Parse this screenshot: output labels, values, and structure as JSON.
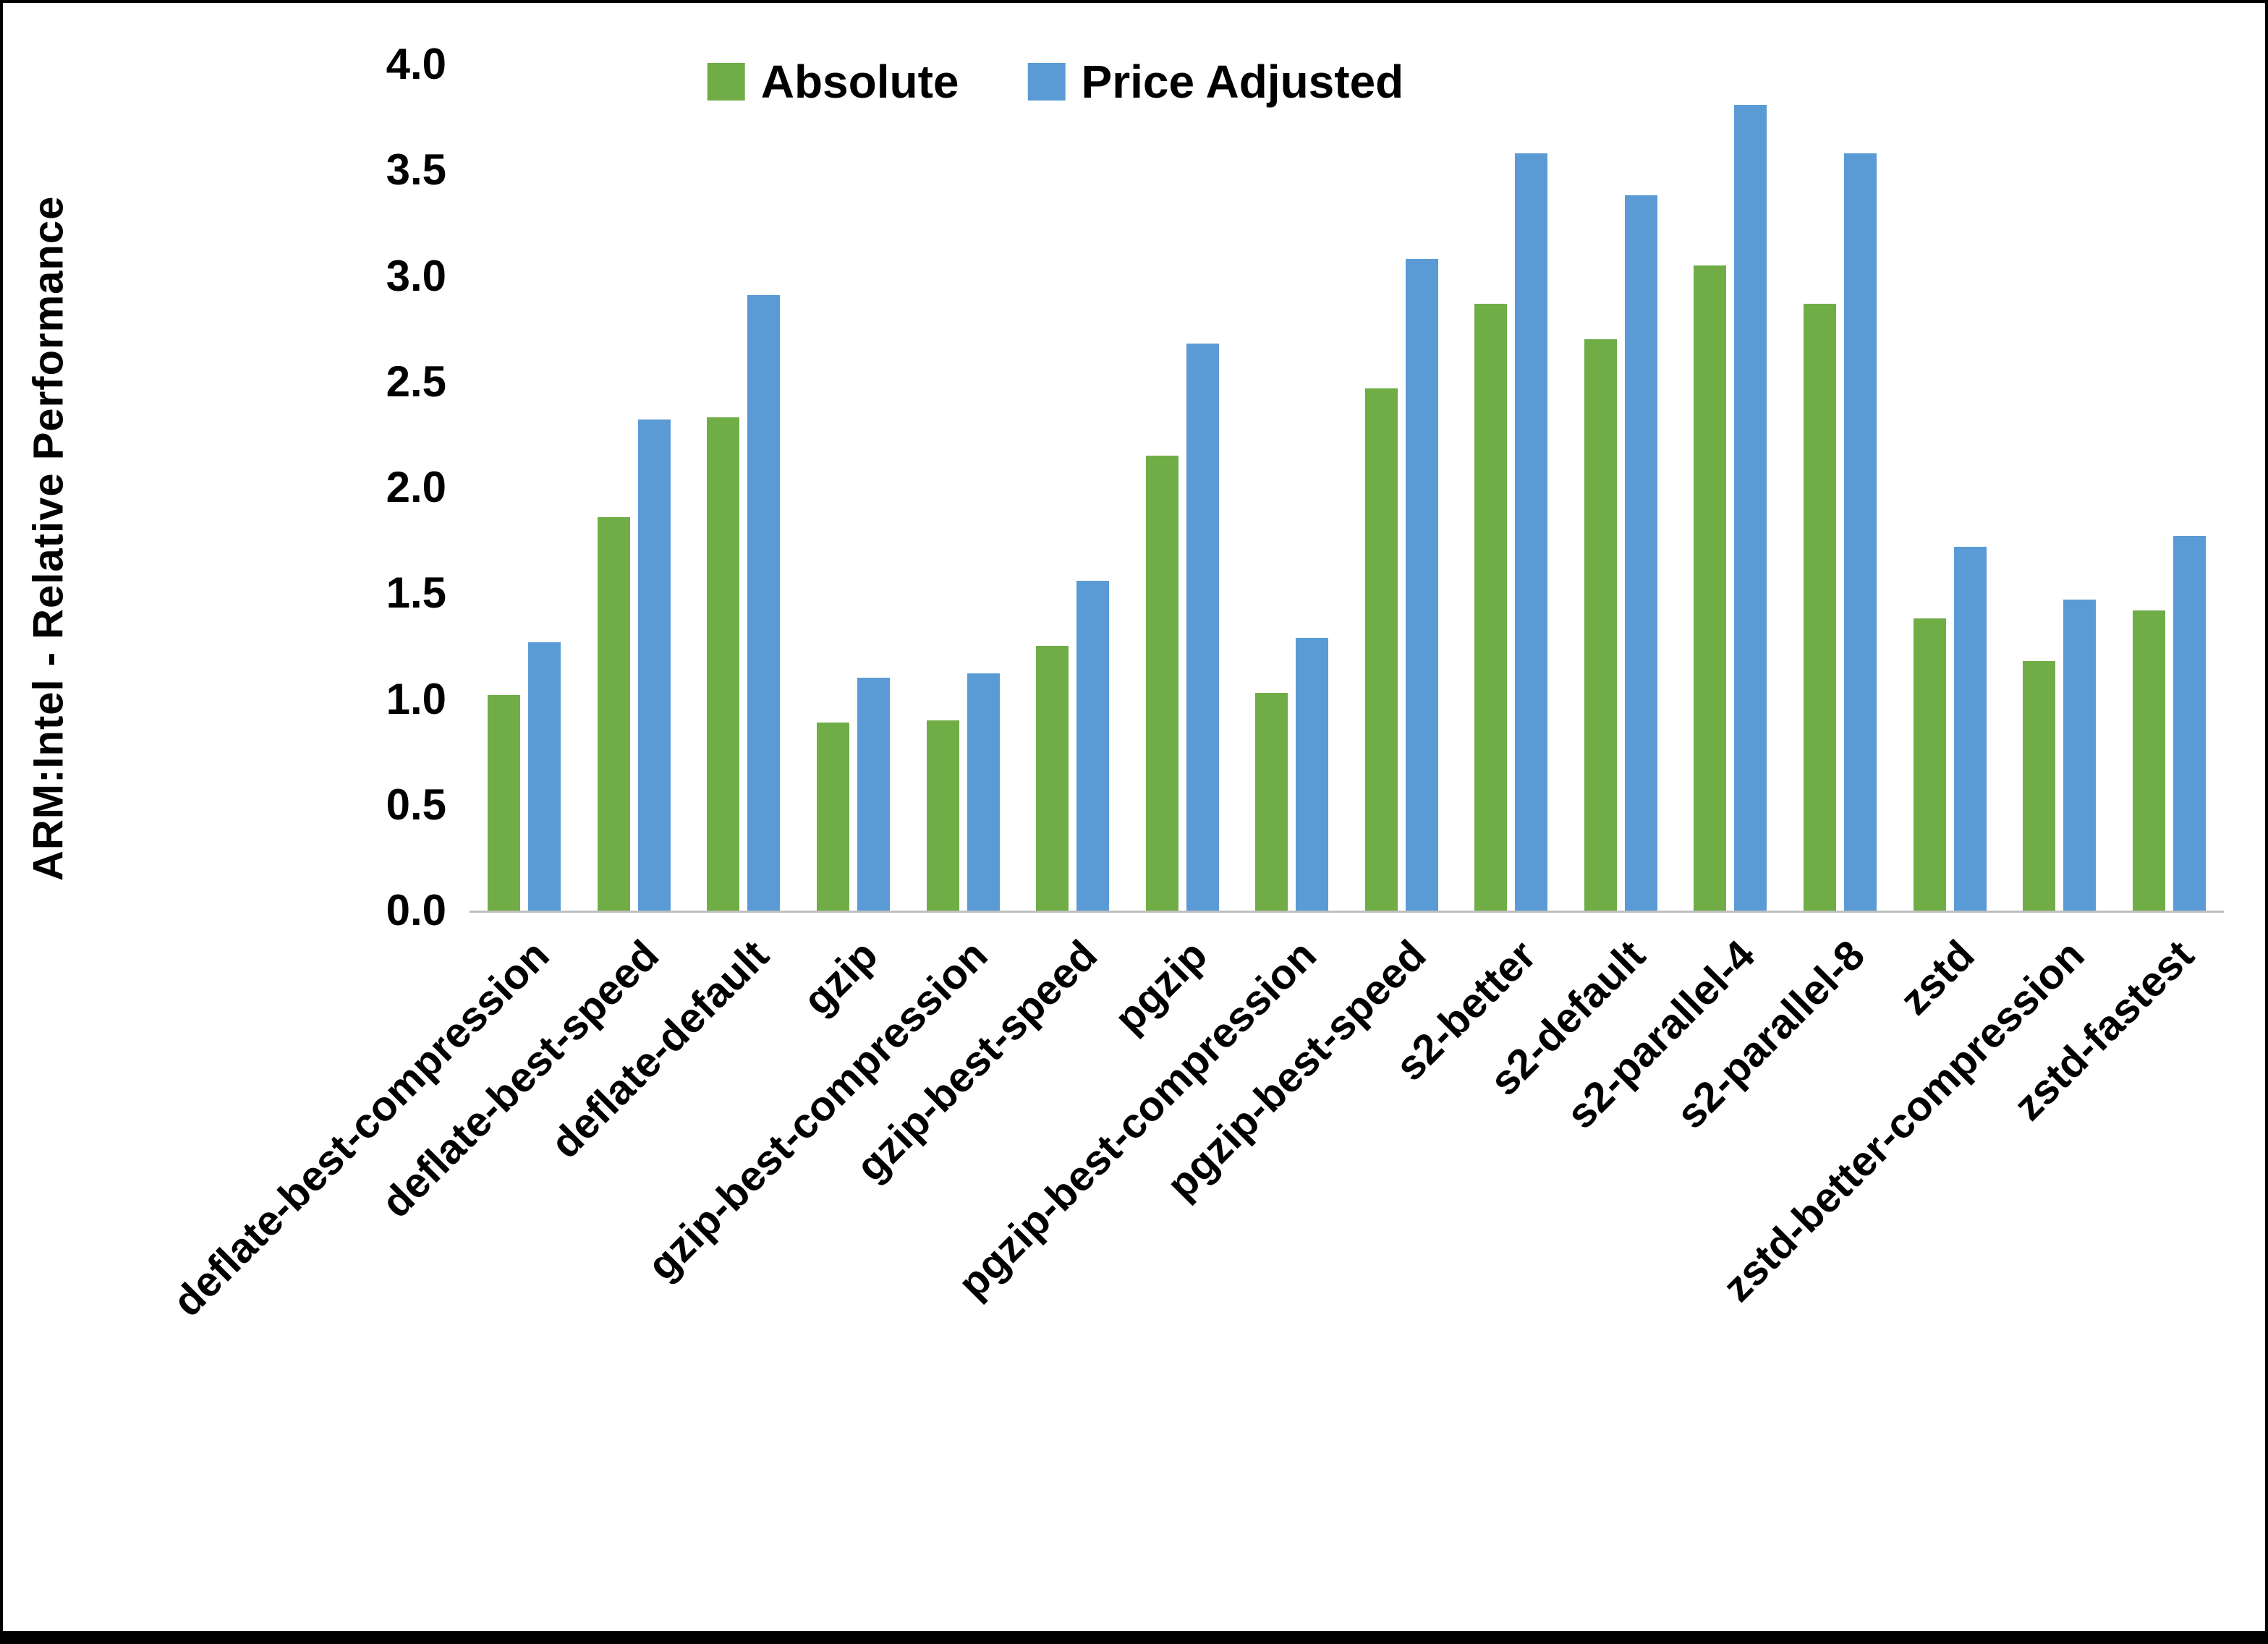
{
  "chart_data": {
    "type": "bar",
    "title": "",
    "xlabel": "",
    "ylabel": "ARM:Intel - Relative Performance",
    "ylim": [
      0,
      4.0
    ],
    "yticks": [
      0.0,
      0.5,
      1.0,
      1.5,
      2.0,
      2.5,
      3.0,
      3.5,
      4.0
    ],
    "grid": false,
    "legend_position": "top-center",
    "categories": [
      "deflate-best-compression",
      "deflate-best-speed",
      "deflate-default",
      "gzip",
      "gzip-best-compression",
      "gzip-best-speed",
      "pgzip",
      "pgzip-best-compression",
      "pgzip-best-speed",
      "s2-better",
      "s2-default",
      "s2-parallel-4",
      "s2-parallel-8",
      "zstd",
      "zstd-better-compression",
      "zstd-fastest"
    ],
    "series": [
      {
        "name": "Absolute",
        "color": "#70AD47",
        "values": [
          1.02,
          1.86,
          2.33,
          0.89,
          0.9,
          1.25,
          2.15,
          1.03,
          2.47,
          2.87,
          2.7,
          3.05,
          2.87,
          1.38,
          1.18,
          1.42
        ]
      },
      {
        "name": "Price Adjusted",
        "color": "#5B9BD5",
        "values": [
          1.27,
          2.32,
          2.91,
          1.1,
          1.12,
          1.56,
          2.68,
          1.29,
          3.08,
          3.58,
          3.38,
          3.81,
          3.58,
          1.72,
          1.47,
          1.77
        ]
      }
    ]
  }
}
